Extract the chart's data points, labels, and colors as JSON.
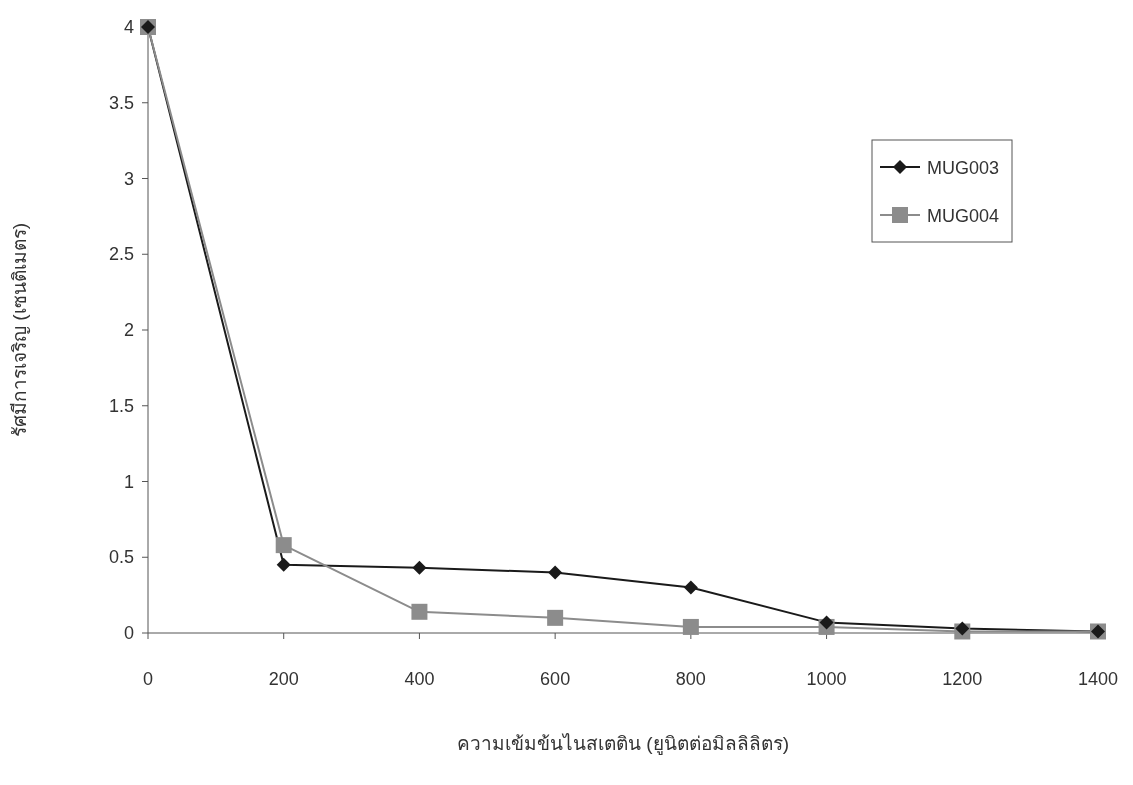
{
  "chart_data": {
    "type": "line",
    "xlabel": "ความเข้มข้นไนสเตติน (ยูนิตต่อมิลลิลิตร)",
    "ylabel": "รัศมีการเจริญ (เซนติเมตร)",
    "x": [
      0,
      200,
      400,
      600,
      800,
      1000,
      1200,
      1400
    ],
    "xlim": [
      0,
      1400
    ],
    "xticks": [
      0,
      200,
      400,
      600,
      800,
      1000,
      1200,
      1400
    ],
    "ylim": [
      0,
      4
    ],
    "yticks": [
      0,
      0.5,
      1,
      1.5,
      2,
      2.5,
      3,
      3.5,
      4
    ],
    "grid": false,
    "legend": "top right",
    "line_style": "solid",
    "series": [
      {
        "name": "MUG003",
        "color": "#1a1a1a",
        "marker": "diamond",
        "values": [
          4,
          0.45,
          0.43,
          0.4,
          0.3,
          0.07,
          0.03,
          0.01
        ]
      },
      {
        "name": "MUG004",
        "color": "#8c8c8c",
        "marker": "square",
        "values": [
          4,
          0.58,
          0.14,
          0.1,
          0.04,
          0.04,
          0.01,
          0.01
        ]
      }
    ]
  }
}
